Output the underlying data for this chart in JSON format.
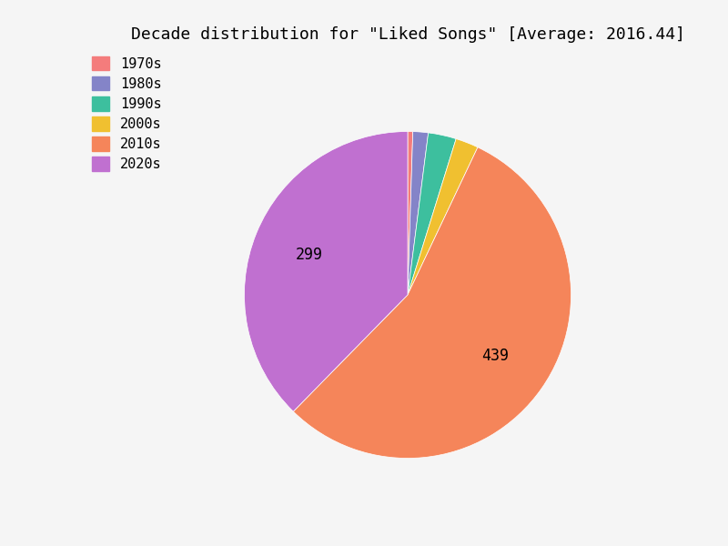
{
  "title": "Decade distribution for \"Liked Songs\" [Average: 2016.44]",
  "labels": [
    "1970s",
    "1980s",
    "1990s",
    "2000s",
    "2010s",
    "2020s"
  ],
  "values": [
    4,
    12,
    22,
    18,
    439,
    299
  ],
  "colors": [
    "#f47c7c",
    "#8484c8",
    "#3dbf9e",
    "#f0c030",
    "#f5855a",
    "#c070d0"
  ],
  "background_color": "#f5f5f5",
  "title_fontsize": 13,
  "title_fontfamily": "monospace",
  "legend_fontsize": 11,
  "autopct_fontsize": 12
}
